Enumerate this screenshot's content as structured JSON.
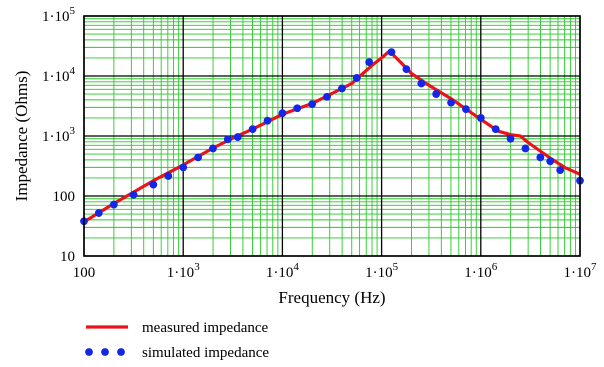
{
  "chart_data": {
    "type": "line",
    "xlabel": "Frequency (Hz)",
    "ylabel": "Impedance (Ohms)",
    "x_scale": "log",
    "y_scale": "log",
    "xlim": [
      100,
      10000000
    ],
    "ylim": [
      10,
      100000
    ],
    "grid": true,
    "x_ticks": [
      {
        "value": 100,
        "label": "100"
      },
      {
        "value": 1000,
        "label": "1·10",
        "exp": "3"
      },
      {
        "value": 10000,
        "label": "1·10",
        "exp": "4"
      },
      {
        "value": 100000,
        "label": "1·10",
        "exp": "5"
      },
      {
        "value": 1000000,
        "label": "1·10",
        "exp": "6"
      },
      {
        "value": 10000000,
        "label": "1·10",
        "exp": "7"
      }
    ],
    "y_ticks": [
      {
        "value": 10,
        "label": "10"
      },
      {
        "value": 100,
        "label": "100"
      },
      {
        "value": 1000,
        "label": "1·10",
        "exp": "3"
      },
      {
        "value": 10000,
        "label": "1·10",
        "exp": "4"
      },
      {
        "value": 100000,
        "label": "1·10",
        "exp": "5"
      }
    ],
    "series": [
      {
        "name": "measured impedance",
        "style": "line",
        "color": "#e8141c",
        "x": [
          100,
          200,
          500,
          1000,
          2000,
          3500,
          5000,
          10000,
          20000,
          50000,
          80000,
          100000,
          120000,
          150000,
          200000,
          300000,
          500000,
          1000000,
          1500000,
          2000000,
          2500000,
          3000000,
          5000000,
          7000000,
          10000000
        ],
        "y": [
          37,
          75,
          180,
          330,
          630,
          1000,
          1300,
          2300,
          3500,
          7500,
          15000,
          20000,
          26000,
          18000,
          11000,
          7000,
          4200,
          1900,
          1200,
          1050,
          1000,
          780,
          430,
          300,
          230
        ]
      },
      {
        "name": "simulated impedance",
        "style": "markers",
        "color": "#1426e8",
        "x": [
          100,
          141,
          200,
          316,
          500,
          708,
          1000,
          1413,
          1995,
          2818,
          3548,
          5012,
          7079,
          10000,
          14125,
          19953,
          28184,
          39811,
          56234,
          74989,
          125893,
          177828,
          251189,
          354813,
          501187,
          707946,
          1000000,
          1412538,
          1995262,
          2818383,
          3981072,
          5011872,
          6309573,
          10000000
        ],
        "y": [
          38,
          52,
          72,
          105,
          155,
          215,
          300,
          440,
          620,
          880,
          960,
          1300,
          1800,
          2400,
          2900,
          3400,
          4500,
          6200,
          9300,
          17000,
          25000,
          13000,
          7500,
          5000,
          3600,
          2800,
          2000,
          1300,
          900,
          620,
          440,
          380,
          270,
          180
        ]
      }
    ]
  }
}
